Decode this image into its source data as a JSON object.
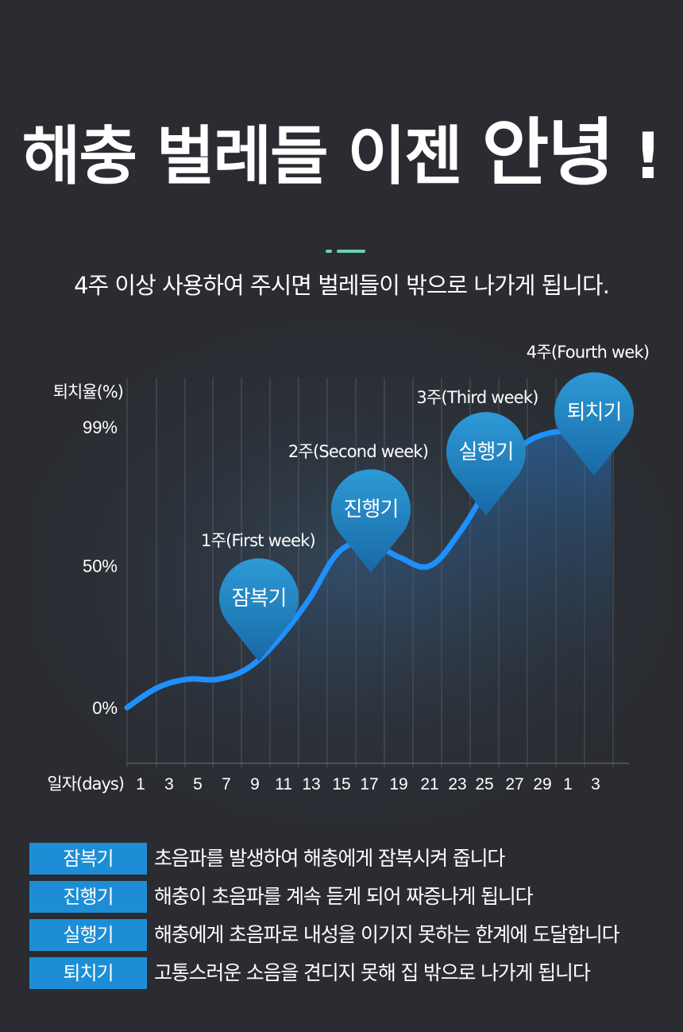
{
  "title": {
    "main": "해충 벌레들 이젠",
    "emphasis": "안녕",
    "suffix": "!"
  },
  "subtitle": "4주 이상 사용하여 주시면 벌레들이 밖으로 나가게 됩니다.",
  "colors": {
    "background": "#2a2c31",
    "line": "#1e90ff",
    "accent_teal": "#6fd0b8",
    "tag_blue": "#1d8ed6",
    "pin_top": "#2d9ad6",
    "pin_bottom": "#1869a6"
  },
  "chart_data": {
    "type": "line",
    "ylabel": "퇴치율(%)",
    "xlabel": "일자(days)",
    "y_ticks": [
      "0%",
      "50%",
      "99%"
    ],
    "y_tick_values": [
      0,
      50,
      99
    ],
    "x_ticks": [
      "1",
      "3",
      "5",
      "7",
      "9",
      "11",
      "13",
      "15",
      "17",
      "19",
      "21",
      "23",
      "25",
      "27",
      "29",
      "1",
      "3"
    ],
    "ylim": [
      0,
      99
    ],
    "grid": "vertical",
    "series": [
      {
        "values": [
          0,
          7,
          10,
          10,
          14,
          24,
          38,
          55,
          58,
          53,
          50,
          62,
          79,
          92,
          97,
          97,
          97
        ]
      }
    ],
    "annotations": [
      {
        "week": "1주(First week)",
        "stage": "잠복기",
        "at_x": "9"
      },
      {
        "week": "2주(Second week)",
        "stage": "진행기",
        "at_x": "17"
      },
      {
        "week": "3주(Third week)",
        "stage": "실행기",
        "at_x": "25"
      },
      {
        "week": "4주(Fourth wek)",
        "stage": "퇴치기",
        "at_x": "1"
      }
    ]
  },
  "legend": [
    {
      "tag": "잠복기",
      "desc": "초음파를 발생하여 해충에게 잠복시켜 줍니다"
    },
    {
      "tag": "진행기",
      "desc": "해충이 초음파를 계속 듣게 되어 짜증나게 됩니다"
    },
    {
      "tag": "실행기",
      "desc": "해충에게 초음파로 내성을 이기지 못하는 한계에 도달합니다"
    },
    {
      "tag": "퇴치기",
      "desc": "고통스러운 소음을 견디지 못해 집 밖으로 나가게 됩니다"
    }
  ]
}
